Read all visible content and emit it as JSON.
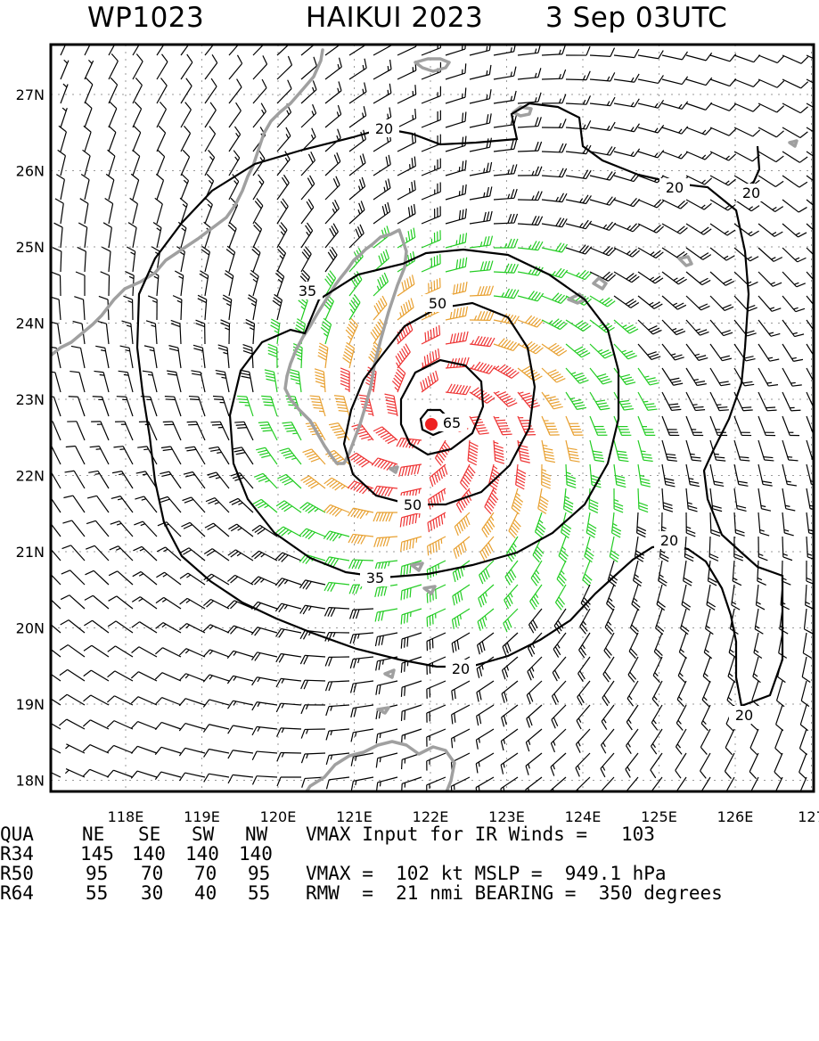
{
  "header": {
    "storm_id": "WP1023",
    "storm_name_year": "HAIKUI 2023",
    "datetime": "3 Sep 03UTC"
  },
  "map": {
    "lat_labels": [
      "27N",
      "26N",
      "25N",
      "24N",
      "23N",
      "22N",
      "21N",
      "20N",
      "19N",
      "18N"
    ],
    "lon_labels": [
      "118E",
      "119E",
      "120E",
      "121E",
      "122E",
      "123E",
      "124E",
      "125E",
      "126E",
      "127"
    ],
    "contour_labels": {
      "c20": [
        "20",
        "20",
        "20",
        "20",
        "20",
        "20"
      ],
      "c35": [
        "35",
        "35"
      ],
      "c50": [
        "50",
        "50"
      ],
      "c65": [
        "65"
      ]
    },
    "colors": {
      "wind_under_34": "#000000",
      "wind_34_49": "#22cc22",
      "wind_50_63": "#e8a030",
      "wind_64_plus": "#ee3333",
      "land_outline": "#a0a0a0",
      "storm_center": "#ee2020"
    },
    "storm_center": {
      "lat": 22.7,
      "lon": 122.0
    }
  },
  "table": {
    "header": [
      "QUA",
      "NE",
      "SE",
      "SW",
      "NW"
    ],
    "rows": [
      [
        "R34",
        "145",
        "140",
        "140",
        "140"
      ],
      [
        "R50",
        "95",
        "70",
        "70",
        "95"
      ],
      [
        "R64",
        "55",
        "30",
        "40",
        "55"
      ]
    ],
    "info": [
      "VMAX Input for IR Winds =   103",
      "",
      "VMAX =  102 kt MSLP =  949.1 hPa",
      "RMW  =  21 nmi BEARING =  350 degrees"
    ]
  }
}
